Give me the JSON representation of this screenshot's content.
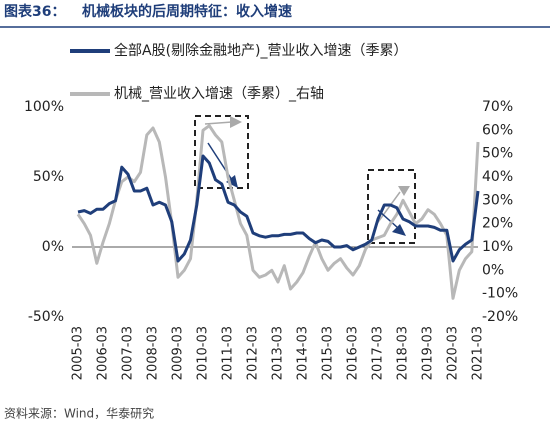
{
  "header": {
    "label": "图表36：",
    "title": "机械板块的后周期特征：收入增速"
  },
  "source": "资料来源：Wind，华泰研究",
  "chart_data": {
    "type": "line",
    "categories": [
      "2005-03",
      null,
      null,
      null,
      "2006-03",
      null,
      null,
      null,
      "2007-03",
      null,
      null,
      null,
      "2008-03",
      null,
      null,
      null,
      "2009-03",
      null,
      null,
      null,
      "2010-03",
      null,
      null,
      null,
      "2011-03",
      null,
      null,
      null,
      "2012-03",
      null,
      null,
      null,
      "2013-03",
      null,
      null,
      null,
      "2014-03",
      null,
      null,
      null,
      "2015-03",
      null,
      null,
      null,
      "2016-03",
      null,
      null,
      null,
      "2017-03",
      null,
      null,
      null,
      "2018-03",
      null,
      null,
      null,
      "2019-03",
      null,
      null,
      null,
      "2020-03",
      null,
      null,
      null,
      "2021-03"
    ],
    "series": [
      {
        "name": "全部A股(剔除金融地产)_营业收入增速（季累）",
        "color": "#1f3e7a",
        "values": [
          25,
          26,
          24,
          27,
          27,
          31,
          33,
          57,
          52,
          40,
          40,
          42,
          30,
          32,
          30,
          18,
          -10,
          -5,
          5,
          30,
          65,
          60,
          48,
          45,
          32,
          30,
          25,
          22,
          10,
          8,
          7,
          8,
          8,
          9,
          9,
          10,
          10,
          6,
          3,
          5,
          4,
          0,
          0,
          1,
          -2,
          0,
          2,
          5,
          20,
          30,
          30,
          28,
          20,
          18,
          15,
          15,
          15,
          14,
          12,
          12,
          -10,
          -2,
          2,
          5,
          40
        ]
      },
      {
        "name": "机械_营业收入增速（季累）_右轴",
        "color": "#b8b8b8",
        "axis": "y2",
        "values": [
          24,
          20,
          15,
          3,
          12,
          20,
          30,
          38,
          40,
          38,
          42,
          58,
          61,
          55,
          40,
          20,
          -3,
          0,
          5,
          30,
          60,
          62,
          58,
          55,
          40,
          30,
          20,
          15,
          0,
          -3,
          -2,
          0,
          -5,
          2,
          -8,
          -5,
          -1,
          6,
          12,
          5,
          0,
          3,
          5,
          1,
          -2,
          2,
          9,
          13,
          14,
          15,
          20,
          24,
          30,
          25,
          20,
          22,
          26,
          24,
          20,
          15,
          -12,
          0,
          5,
          8,
          55
        ]
      }
    ],
    "ylim": [
      -50,
      100
    ],
    "yticks": [
      {
        "value": -50,
        "label": "-50%"
      },
      {
        "value": 0,
        "label": "0%"
      },
      {
        "value": 50,
        "label": "50%"
      },
      {
        "value": 100,
        "label": "100%"
      }
    ],
    "y2lim": [
      -20,
      70
    ],
    "y2ticks": [
      {
        "value": -20,
        "label": "-20%"
      },
      {
        "value": -10,
        "label": "-10%"
      },
      {
        "value": 0,
        "label": "0%"
      },
      {
        "value": 10,
        "label": "10%"
      },
      {
        "value": 20,
        "label": "20%"
      },
      {
        "value": 30,
        "label": "30%"
      },
      {
        "value": 40,
        "label": "40%"
      },
      {
        "value": 50,
        "label": "50%"
      },
      {
        "value": 60,
        "label": "60%"
      },
      {
        "value": 70,
        "label": "70%"
      }
    ]
  }
}
